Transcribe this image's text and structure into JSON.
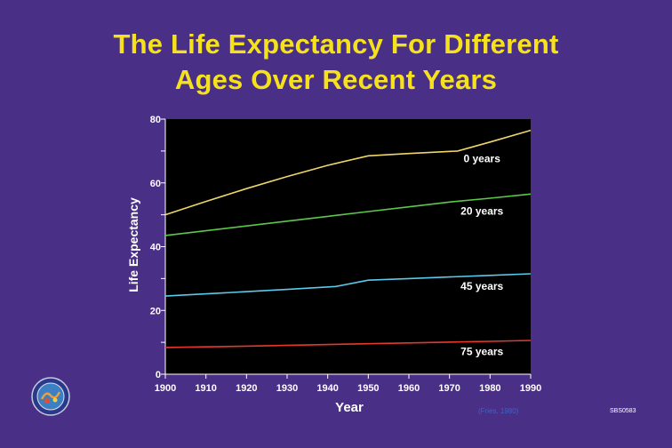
{
  "header": {
    "title_line1": "The Life Expectancy For Different",
    "title_line2": "Ages Over Recent Years"
  },
  "footer": {
    "source": "(Fries, 1980)",
    "code": "SBS0583"
  },
  "colors": {
    "background": "#4a2f86",
    "title": "#f5e21c",
    "plot_bg": "#000000"
  },
  "chart_data": {
    "type": "line",
    "title": "The Life Expectancy For Different Ages Over Recent Years",
    "xlabel": "Year",
    "ylabel": "Life Expectancy",
    "xlim": [
      1900,
      1990
    ],
    "ylim": [
      0,
      80
    ],
    "xticks": [
      1900,
      1910,
      1920,
      1930,
      1940,
      1950,
      1960,
      1970,
      1980,
      1990
    ],
    "yticks": [
      0,
      20,
      40,
      60,
      80
    ],
    "grid": false,
    "series": [
      {
        "name": "0 years",
        "color": "#f0d66a",
        "x": [
          1900,
          1910,
          1920,
          1930,
          1940,
          1950,
          1960,
          1972,
          1980,
          1990
        ],
        "y": [
          50.0,
          54.2,
          58.2,
          62.0,
          65.5,
          68.5,
          69.2,
          70.0,
          72.8,
          76.5
        ]
      },
      {
        "name": "20 years",
        "color": "#5cc84a",
        "x": [
          1900,
          1910,
          1920,
          1930,
          1940,
          1950,
          1960,
          1970,
          1980,
          1990
        ],
        "y": [
          43.5,
          45.0,
          46.5,
          48.0,
          49.5,
          51.0,
          52.5,
          54.0,
          55.2,
          56.5
        ]
      },
      {
        "name": "45 years",
        "color": "#5cc8ec",
        "x": [
          1900,
          1910,
          1920,
          1930,
          1942,
          1950,
          1960,
          1970,
          1980,
          1990
        ],
        "y": [
          24.5,
          25.2,
          25.9,
          26.6,
          27.5,
          29.5,
          30.0,
          30.5,
          31.0,
          31.5
        ]
      },
      {
        "name": "75 years",
        "color": "#e8382c",
        "x": [
          1900,
          1920,
          1940,
          1960,
          1980,
          1990
        ],
        "y": [
          8.4,
          8.8,
          9.3,
          9.8,
          10.3,
          10.6
        ]
      }
    ],
    "labels": [
      {
        "series": "0 years",
        "text": "0 years",
        "x": 1978,
        "y": 66.5
      },
      {
        "series": "20 years",
        "text": "20 years",
        "x": 1978,
        "y": 50.0
      },
      {
        "series": "45 years",
        "text": "45 years",
        "x": 1978,
        "y": 26.5
      },
      {
        "series": "75 years",
        "text": "75 years",
        "x": 1978,
        "y": 6.0
      }
    ]
  }
}
